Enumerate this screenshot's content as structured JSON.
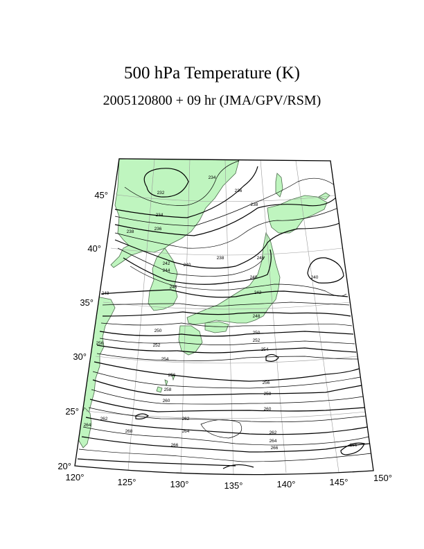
{
  "title": "500 hPa Temperature (K)",
  "subtitle": "2005120800 + 09 hr (JMA/GPV/RSM)",
  "colors": {
    "land": "#bff5bf",
    "coast": "#4a6a4a",
    "contour": "#000000",
    "grid": "#9a9a9a",
    "frame": "#000000"
  },
  "map": {
    "projection": "lambert-conic",
    "lon_range": [
      120,
      150
    ],
    "lat_range": [
      20,
      47
    ],
    "lon_ticks": [
      "120°",
      "125°",
      "130°",
      "135°",
      "140°",
      "145°",
      "150°"
    ],
    "lat_ticks": [
      "20°",
      "25°",
      "30°",
      "35°",
      "40°",
      "45°"
    ],
    "contour_labels": [
      {
        "id": "c234a",
        "text": "234"
      },
      {
        "id": "c236a",
        "text": "236"
      },
      {
        "id": "c232",
        "text": "232"
      },
      {
        "id": "c238a",
        "text": "238"
      },
      {
        "id": "c234b",
        "text": "234"
      },
      {
        "id": "c236b",
        "text": "236"
      },
      {
        "id": "c238b",
        "text": "238"
      },
      {
        "id": "c238c",
        "text": "238"
      },
      {
        "id": "c242a",
        "text": "242"
      },
      {
        "id": "c240a",
        "text": "240"
      },
      {
        "id": "c244",
        "text": "244"
      },
      {
        "id": "c246",
        "text": "246"
      },
      {
        "id": "c248",
        "text": "248"
      },
      {
        "id": "c240b",
        "text": "240"
      },
      {
        "id": "c240c",
        "text": "240"
      },
      {
        "id": "c242b",
        "text": "242"
      },
      {
        "id": "c246b",
        "text": "246"
      },
      {
        "id": "c248b",
        "text": "248"
      },
      {
        "id": "c250a",
        "text": "250"
      },
      {
        "id": "c250b",
        "text": "250"
      },
      {
        "id": "c252a",
        "text": "252"
      },
      {
        "id": "c252b",
        "text": "252"
      },
      {
        "id": "c256a",
        "text": "256"
      },
      {
        "id": "c254a",
        "text": "254"
      },
      {
        "id": "c254b",
        "text": "254"
      },
      {
        "id": "c256b",
        "text": "256"
      },
      {
        "id": "c256c",
        "text": "256"
      },
      {
        "id": "c258a",
        "text": "258"
      },
      {
        "id": "c258b",
        "text": "258"
      },
      {
        "id": "c260a",
        "text": "260"
      },
      {
        "id": "c260b",
        "text": "260"
      },
      {
        "id": "c262a",
        "text": "262"
      },
      {
        "id": "c262b",
        "text": "262"
      },
      {
        "id": "c262c",
        "text": "262"
      },
      {
        "id": "c264a",
        "text": "264"
      },
      {
        "id": "c264b",
        "text": "264"
      },
      {
        "id": "c264c",
        "text": "264"
      },
      {
        "id": "c266a",
        "text": "266"
      },
      {
        "id": "c266b",
        "text": "266"
      },
      {
        "id": "c266c",
        "text": "266"
      },
      {
        "id": "c268",
        "text": "268"
      }
    ]
  }
}
